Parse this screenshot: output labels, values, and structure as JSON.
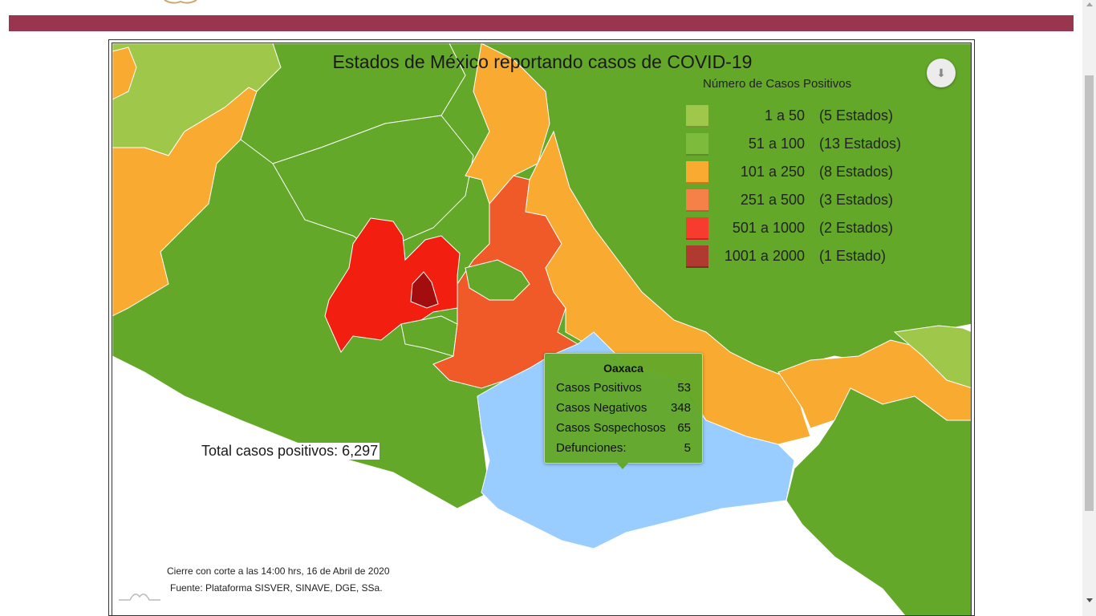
{
  "chart": {
    "title": "Estados de México reportando casos de COVID-19",
    "legend_title": "Número de Casos Positivos",
    "legend": [
      {
        "range": "1 a 50",
        "count": "(5 Estados)",
        "color": "#9fc84a"
      },
      {
        "range": "51 a 100",
        "count": "(13 Estados)",
        "color": "#7cbb3c"
      },
      {
        "range": "101 a 250",
        "count": "(8 Estados)",
        "color": "#f9aa30"
      },
      {
        "range": "251 a 500",
        "count": "(3 Estados)",
        "color": "#f58149"
      },
      {
        "range": "501 a 1000",
        "count": "(2 Estados)",
        "color": "#f73c2f"
      },
      {
        "range": "1001 a 2000",
        "count": "(1 Estado)",
        "color": "#b03a30"
      }
    ],
    "total_label": "Total casos positivos: 6,297",
    "footer_cierre": "Cierre con corte a las 14:00 hrs, 16 de Abril de 2020",
    "footer_fuente": "Fuente: Plataforma SISVER, SINAVE, DGE, SSa."
  },
  "tooltip": {
    "state": "Oaxaca",
    "rows": [
      {
        "label": "Casos Positivos",
        "value": "53"
      },
      {
        "label": "Casos Negativos",
        "value": "348"
      },
      {
        "label": "Casos Sospechosos",
        "value": "65"
      },
      {
        "label": "Defunciones:",
        "value": "5"
      }
    ]
  },
  "map_colors": {
    "light_green": "#9fc84a",
    "green": "#63a828",
    "orange": "#f9aa30",
    "dark_orange": "#f05a28",
    "red": "#f21e0f",
    "dark_red": "#a30d0d",
    "highlight_blue": "#99ccff"
  },
  "icons": {
    "download": "download-icon"
  }
}
